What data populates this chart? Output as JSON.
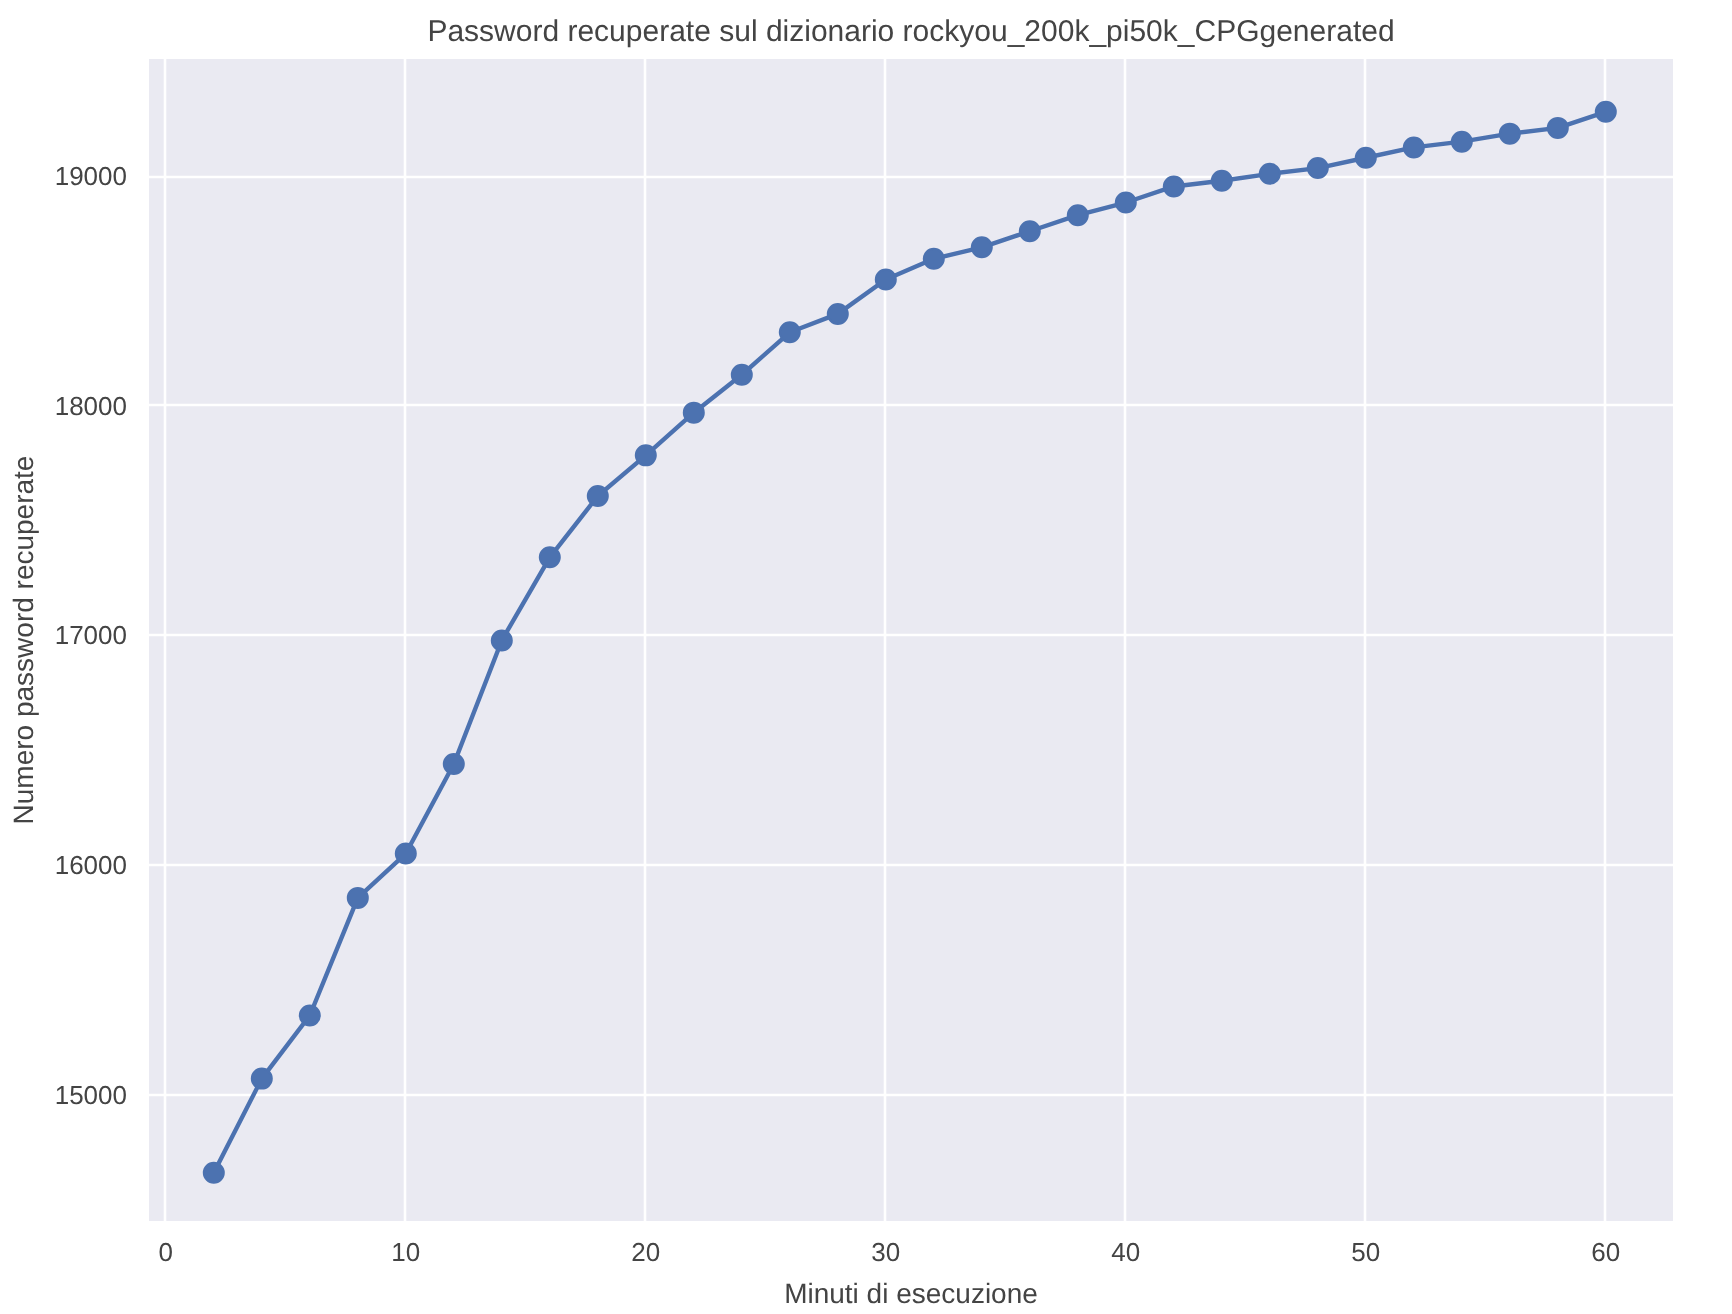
{
  "chart_data": {
    "type": "line",
    "title": "Password recuperate sul dizionario rockyou_200k_pi50k_CPGgenerated",
    "xlabel": "Minuti di esecuzione",
    "ylabel": "Numero password recuperate",
    "x": [
      2,
      4,
      6,
      8,
      10,
      12,
      14,
      16,
      18,
      20,
      22,
      24,
      26,
      28,
      30,
      32,
      34,
      36,
      38,
      40,
      42,
      44,
      46,
      48,
      50,
      52,
      54,
      56,
      58,
      60
    ],
    "series": [
      {
        "color": "#4c72b0",
        "values": [
          14660,
          15070,
          15345,
          15857,
          16050,
          16440,
          16978,
          17340,
          17607,
          17784,
          17970,
          18135,
          18320,
          18400,
          18550,
          18640,
          18690,
          18760,
          18830,
          18885,
          18955,
          18980,
          19010,
          19035,
          19080,
          19125,
          19150,
          19185,
          19210,
          19280
        ]
      }
    ],
    "xlim": [
      -0.7,
      62.8
    ],
    "ylim": [
      14450,
      19510
    ],
    "xticks": [
      0,
      10,
      20,
      30,
      40,
      50,
      60
    ],
    "yticks": [
      15000,
      16000,
      17000,
      18000,
      19000
    ],
    "grid": true,
    "marker": "circle",
    "line_style": "solid"
  }
}
